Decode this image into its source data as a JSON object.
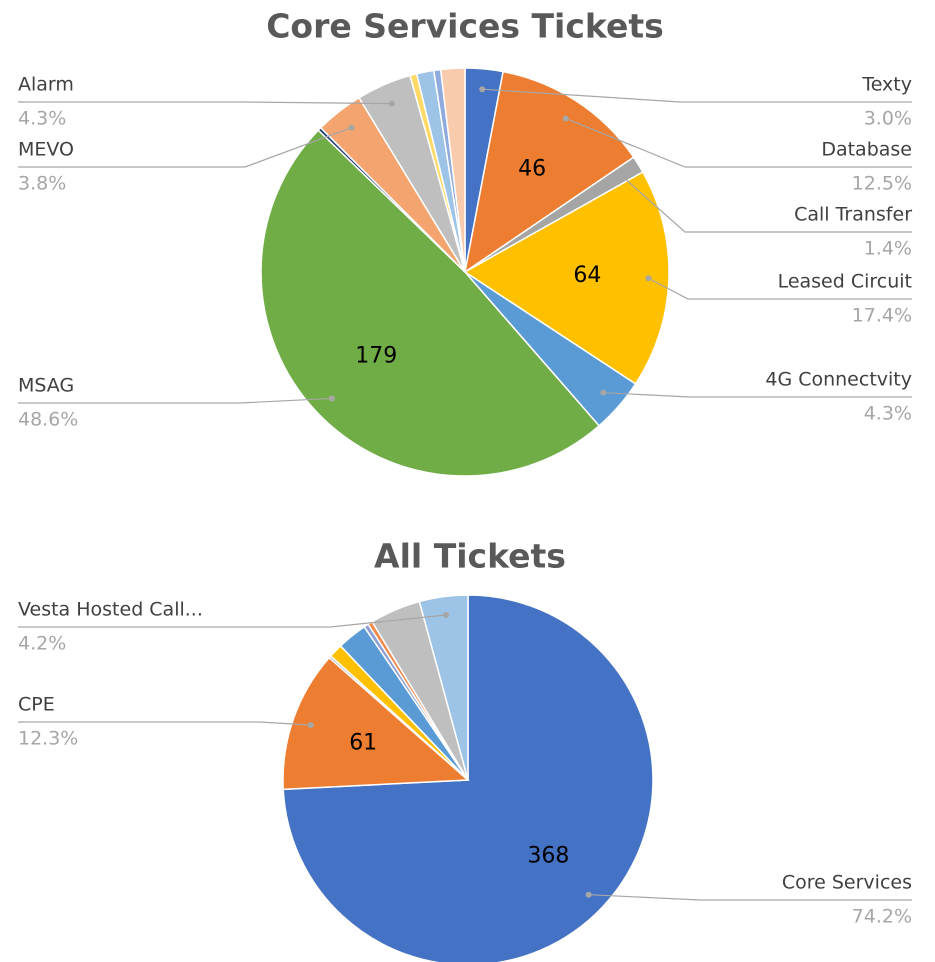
{
  "chart_data": [
    {
      "type": "pie",
      "title": "Core Services Tickets",
      "categories": [
        "Texty",
        "Database",
        "Call Transfer",
        "Leased Circuit",
        "4G Connectvity",
        "MSAG",
        null,
        "MEVO",
        "Alarm",
        null,
        null,
        null,
        null
      ],
      "values": [
        11,
        46,
        5,
        64,
        16,
        179,
        1,
        14,
        16,
        2,
        5,
        2,
        7
      ],
      "value_labels": [
        null,
        "46",
        null,
        "64",
        null,
        "179",
        null,
        null,
        null,
        null,
        null,
        null,
        null
      ],
      "percent_labels": [
        "3.0%",
        "12.5%",
        "1.4%",
        "17.4%",
        "4.3%",
        "48.6%",
        null,
        "3.8%",
        "4.3%",
        null,
        null,
        null,
        null
      ],
      "colors": [
        "#4472c4",
        "#ed7d31",
        "#a5a5a5",
        "#ffc000",
        "#5b9bd5",
        "#70ad47",
        "#264478",
        "#f4a46e",
        "#bfbfbf",
        "#ffd966",
        "#9dc3e6",
        "#8faadc",
        "#f8cbad"
      ]
    },
    {
      "type": "pie",
      "title": "All Tickets",
      "categories": [
        "Core Services",
        "CPE",
        null,
        null,
        null,
        null,
        null,
        null,
        "Vesta Hosted Call..."
      ],
      "values": [
        368,
        61,
        1,
        6,
        13,
        2,
        2,
        22,
        21
      ],
      "value_labels": [
        "368",
        "61",
        null,
        null,
        null,
        null,
        null,
        null,
        null
      ],
      "percent_labels": [
        "74.2%",
        "12.3%",
        null,
        null,
        null,
        null,
        null,
        null,
        "4.2%"
      ],
      "colors": [
        "#4472c4",
        "#ed7d31",
        "#a5a5a5",
        "#ffc000",
        "#5b9bd5",
        "#8e9fd6",
        "#f08a4b",
        "#bfbfbf",
        "#9dc3e6"
      ]
    }
  ]
}
